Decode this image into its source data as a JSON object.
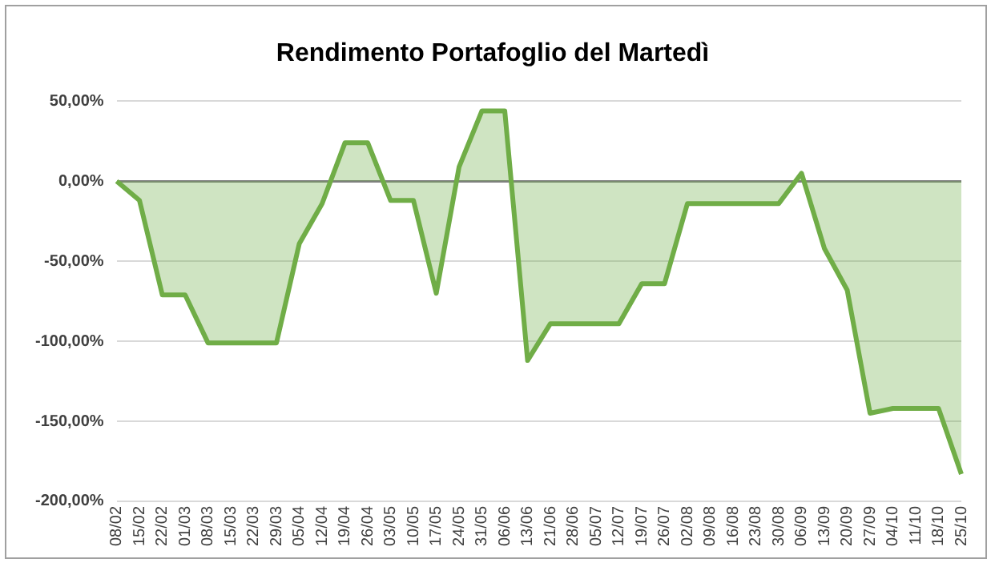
{
  "chart_data": {
    "type": "area",
    "title": "Rendimento Portafoglio del Martedì",
    "categories": [
      "08/02",
      "15/02",
      "22/02",
      "01/03",
      "08/03",
      "15/03",
      "22/03",
      "29/03",
      "05/04",
      "12/04",
      "19/04",
      "26/04",
      "03/05",
      "10/05",
      "17/05",
      "24/05",
      "31/05",
      "06/06",
      "13/06",
      "21/06",
      "28/06",
      "05/07",
      "12/07",
      "19/07",
      "26/07",
      "02/08",
      "09/08",
      "16/08",
      "23/08",
      "30/08",
      "06/09",
      "13/09",
      "20/09",
      "27/09",
      "04/10",
      "11/10",
      "18/10",
      "25/10"
    ],
    "series": [
      {
        "color": "#70ad47",
        "values": [
          0,
          -12,
          -71,
          -71,
          -101,
          -101,
          -101,
          -101,
          -39,
          -14,
          24,
          24,
          -12,
          -12,
          -70,
          9,
          44,
          44,
          -112,
          -89,
          -89,
          -89,
          -89,
          -64,
          -64,
          -14,
          -14,
          -14,
          -14,
          -14,
          5,
          -42,
          -68,
          -145,
          -142,
          -142,
          -142,
          -183
        ]
      }
    ],
    "ylim": [
      -200,
      50
    ],
    "yticks": [
      {
        "value": -200,
        "label": "-200,00%"
      },
      {
        "value": -150,
        "label": "-150,00%"
      },
      {
        "value": -100,
        "label": "-100,00%"
      },
      {
        "value": -50,
        "label": "-50,00%"
      },
      {
        "value": 0,
        "label": "0,00%"
      },
      {
        "value": 50,
        "label": "50,00%"
      }
    ],
    "grid": "y",
    "legend": false,
    "marker": "none",
    "line_style": "solid"
  }
}
